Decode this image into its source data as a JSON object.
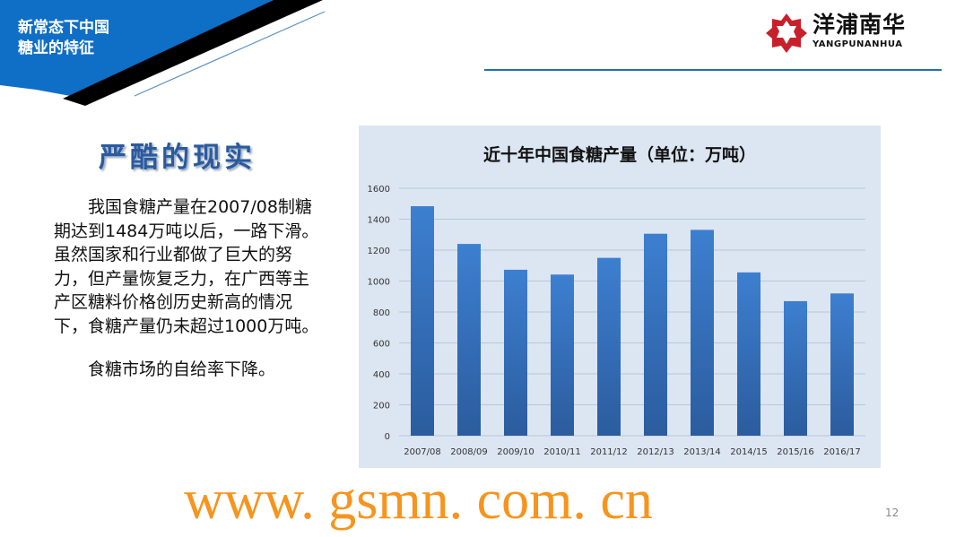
{
  "header": {
    "section_title_line1": "新常态下中国",
    "section_title_line2": "糖业的特征",
    "accent_color": "#0f6fc6"
  },
  "logo": {
    "name_cn": "洋浦南华",
    "name_en": "YANGPUNANHUA"
  },
  "slide": {
    "heading": "严酷的现实",
    "paragraph1": "我国食糖产量在2007/08制糖期达到1484万吨以后，一路下滑。虽然国家和行业都做了巨大的努力，但产量恢复乏力，在广西等主产区糖料价格创历史新高的情况下，食糖产量仍未超过1000万吨。",
    "paragraph2": "食糖市场的自给率下降。",
    "watermark": "www. gsmn. com. cn",
    "page_number": "12"
  },
  "chart_data": {
    "type": "bar",
    "title": "近十年中国食糖产量（单位：万吨）",
    "categories": [
      "2007/08",
      "2008/09",
      "2009/10",
      "2010/11",
      "2011/12",
      "2012/13",
      "2013/14",
      "2014/15",
      "2015/16",
      "2016/17"
    ],
    "values": [
      1484,
      1240,
      1073,
      1042,
      1150,
      1306,
      1331,
      1056,
      870,
      920
    ],
    "ylim": [
      0,
      1600
    ],
    "yticks": [
      "0",
      "200",
      "400",
      "600",
      "800",
      "1000",
      "1200",
      "1400",
      "1600"
    ],
    "grid": true,
    "legend": "none",
    "bar_color": "#3a75c4",
    "background": "#dce6f2"
  }
}
